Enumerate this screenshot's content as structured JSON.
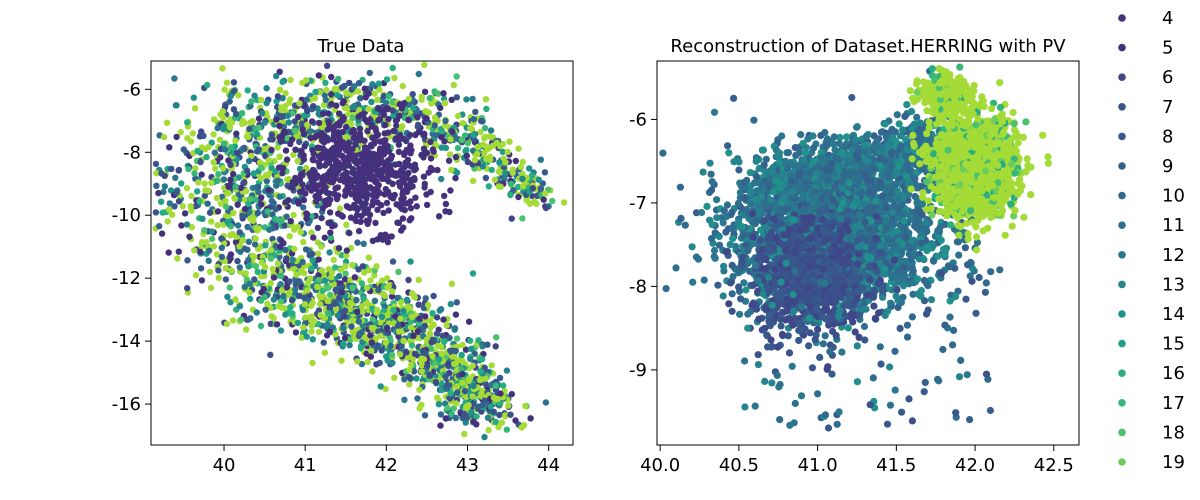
{
  "chart_data": [
    {
      "type": "scatter",
      "title": "True Data",
      "xlabel": "",
      "ylabel": "",
      "xlim": [
        39.1,
        44.3
      ],
      "ylim": [
        -17.3,
        -5.1
      ],
      "xticks": [
        40,
        41,
        42,
        43,
        44
      ],
      "yticks": [
        -6,
        -8,
        -10,
        -12,
        -14,
        -16
      ],
      "ytick_labels": [
        "-6",
        "-8",
        "-10",
        "-12",
        "-14",
        "-16"
      ],
      "grid": false
    },
    {
      "type": "scatter",
      "title": "Reconstruction of Dataset.HERRING with PV",
      "xlabel": "",
      "ylabel": "",
      "xlim": [
        39.98,
        42.66
      ],
      "ylim": [
        -9.9,
        -5.3
      ],
      "xticks": [
        40.0,
        40.5,
        41.0,
        41.5,
        42.0,
        42.5
      ],
      "xtick_labels": [
        "40.0",
        "40.5",
        "41.0",
        "41.5",
        "42.0",
        "42.5"
      ],
      "yticks": [
        -6,
        -7,
        -8,
        -9
      ],
      "ytick_labels": [
        "-6",
        "-7",
        "-8",
        "-9"
      ],
      "grid": false
    }
  ],
  "legend": {
    "placement": "right",
    "entries": [
      "4",
      "5",
      "6",
      "7",
      "8",
      "9",
      "10",
      "11",
      "12",
      "13",
      "14",
      "15",
      "16",
      "17",
      "18",
      "19"
    ],
    "colors": [
      "#46307e",
      "#41337a",
      "#3f4788",
      "#3b518b",
      "#38598c",
      "#355f8d",
      "#306a8e",
      "#2d718e",
      "#2a788e",
      "#25858e",
      "#21918c",
      "#1fa188",
      "#27ad81",
      "#35b779",
      "#4ac16d",
      "#6ccd5a"
    ]
  }
}
